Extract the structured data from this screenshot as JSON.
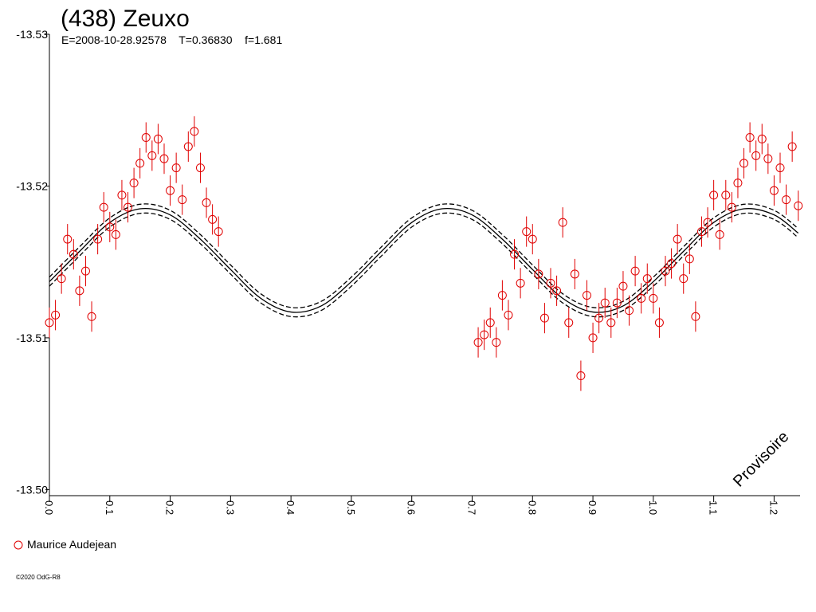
{
  "chart_data": {
    "type": "scatter",
    "title": "(438) Zeuxo",
    "subtitle": "E=2008-10-28.92578    T=0.36830    f=1.681",
    "annotation": "Provisoire",
    "footer": "©2020 OdG-R8",
    "xlim": [
      0,
      1.243
    ],
    "ylim": [
      -13.53,
      -13.4996
    ],
    "xticks": [
      {
        "value": 0,
        "label": "0.0"
      },
      0.1,
      0.2,
      0.3,
      0.4,
      0.5,
      0.6,
      0.7,
      0.8,
      0.9,
      {
        "value": 1,
        "label": "1.0"
      },
      1.1,
      1.2
    ],
    "yticks": [
      -13.53,
      -13.52,
      -13.51,
      {
        "value": -13.5,
        "label": "-13.50"
      }
    ],
    "series": [
      {
        "name": "Maurice Audejean",
        "color": "#e00000",
        "x": [
          0.0,
          0.01,
          0.02,
          0.03,
          0.04,
          0.05,
          0.06,
          0.07,
          0.08,
          0.09,
          0.1,
          0.11,
          0.12,
          0.13,
          0.14,
          0.15,
          0.16,
          0.17,
          0.18,
          0.19,
          0.2,
          0.21,
          0.22,
          0.23,
          0.24,
          0.25,
          0.26,
          0.27,
          0.28,
          0.71,
          0.72,
          0.73,
          0.74,
          0.75,
          0.76,
          0.77,
          0.78,
          0.79,
          0.8,
          0.81,
          0.82,
          0.83,
          0.84,
          0.85,
          0.86,
          0.87,
          0.88,
          0.89,
          0.9,
          0.91,
          0.92,
          0.93,
          0.94,
          0.95,
          0.96,
          0.97,
          0.98,
          0.99,
          1.0,
          1.01,
          1.02,
          1.03,
          1.04,
          1.05,
          1.06,
          1.07,
          1.08,
          1.09,
          1.1,
          1.11,
          1.12,
          1.13,
          1.14,
          1.15,
          1.16,
          1.17,
          1.18,
          1.19,
          1.2,
          1.21,
          1.22,
          1.23,
          1.24
        ],
        "values": [
          -13.511,
          -13.5115,
          -13.5139,
          -13.5165,
          -13.5155,
          -13.5131,
          -13.5144,
          -13.5114,
          -13.5165,
          -13.5186,
          -13.5173,
          -13.5168,
          -13.5194,
          -13.5186,
          -13.5202,
          -13.5215,
          -13.5232,
          -13.522,
          -13.5231,
          -13.5218,
          -13.5197,
          -13.5212,
          -13.5191,
          -13.5226,
          -13.5236,
          -13.5212,
          -13.5189,
          -13.5178,
          -13.517,
          -13.5097,
          -13.5102,
          -13.511,
          -13.5097,
          -13.5128,
          -13.5115,
          -13.5155,
          -13.5136,
          -13.517,
          -13.5165,
          -13.5142,
          -13.5113,
          -13.5136,
          -13.5131,
          -13.5176,
          -13.511,
          -13.5142,
          -13.5075,
          -13.5128,
          -13.51,
          -13.5113,
          -13.5123,
          -13.511,
          -13.5123,
          -13.5134,
          -13.5118,
          -13.5144,
          -13.5126,
          -13.5139,
          -13.5126,
          -13.511,
          -13.5144,
          -13.5149,
          -13.5165,
          -13.5139,
          -13.5152,
          -13.5114,
          -13.517,
          -13.5176,
          -13.5194,
          -13.5168,
          -13.5194,
          -13.5186,
          -13.5202,
          -13.5215,
          -13.5232,
          -13.522,
          -13.5231,
          -13.5218,
          -13.5197,
          -13.5212,
          -13.5191,
          -13.5226,
          -13.5187
        ],
        "errors": [
          0.001,
          0.001,
          0.001,
          0.001,
          0.001,
          0.001,
          0.001,
          0.001,
          0.001,
          0.001,
          0.001,
          0.001,
          0.001,
          0.001,
          0.001,
          0.001,
          0.001,
          0.001,
          0.001,
          0.001,
          0.001,
          0.001,
          0.001,
          0.001,
          0.001,
          0.001,
          0.001,
          0.001,
          0.001,
          0.001,
          0.001,
          0.001,
          0.001,
          0.001,
          0.001,
          0.001,
          0.001,
          0.001,
          0.001,
          0.001,
          0.001,
          0.001,
          0.001,
          0.001,
          0.001,
          0.001,
          0.001,
          0.001,
          0.001,
          0.001,
          0.001,
          0.001,
          0.001,
          0.001,
          0.001,
          0.001,
          0.001,
          0.001,
          0.001,
          0.001,
          0.001,
          0.001,
          0.001,
          0.001,
          0.001,
          0.001,
          0.001,
          0.001,
          0.001,
          0.001,
          0.001,
          0.001,
          0.001,
          0.001,
          0.001,
          0.001,
          0.001,
          0.001,
          0.001,
          0.001,
          0.001,
          0.001,
          0.001
        ]
      }
    ],
    "curve_x": [
      0,
      0.05,
      0.1,
      0.15,
      0.2,
      0.25,
      0.3,
      0.35,
      0.4,
      0.45,
      0.5,
      0.55,
      0.6,
      0.65,
      0.7,
      0.75,
      0.8,
      0.85,
      0.9,
      0.95,
      1,
      1.05,
      1.1,
      1.15,
      1.2,
      1.24
    ],
    "curves": [
      {
        "dashed": false,
        "values": [
          -13.5137,
          -13.5157,
          -13.5176,
          -13.5185,
          -13.5181,
          -13.5165,
          -13.5145,
          -13.5126,
          -13.5117,
          -13.5121,
          -13.5137,
          -13.5157,
          -13.5176,
          -13.5185,
          -13.5181,
          -13.5165,
          -13.5145,
          -13.5126,
          -13.5117,
          -13.5121,
          -13.5137,
          -13.5157,
          -13.5176,
          -13.5185,
          -13.5181,
          -13.5169
        ]
      },
      {
        "dashed": true,
        "values": [
          -13.514,
          -13.516,
          -13.5179,
          -13.5188,
          -13.5184,
          -13.5168,
          -13.5148,
          -13.5129,
          -13.512,
          -13.5124,
          -13.514,
          -13.516,
          -13.5179,
          -13.5188,
          -13.5184,
          -13.5168,
          -13.5148,
          -13.5129,
          -13.512,
          -13.5124,
          -13.514,
          -13.516,
          -13.5179,
          -13.5188,
          -13.5184,
          -13.5172
        ]
      },
      {
        "dashed": true,
        "values": [
          -13.5134,
          -13.5154,
          -13.5173,
          -13.5182,
          -13.5178,
          -13.5162,
          -13.5142,
          -13.5123,
          -13.5114,
          -13.5118,
          -13.5134,
          -13.5154,
          -13.5173,
          -13.5182,
          -13.5178,
          -13.5162,
          -13.5142,
          -13.5123,
          -13.5114,
          -13.5118,
          -13.5134,
          -13.5154,
          -13.5173,
          -13.5182,
          -13.5178,
          -13.5166
        ]
      }
    ]
  }
}
